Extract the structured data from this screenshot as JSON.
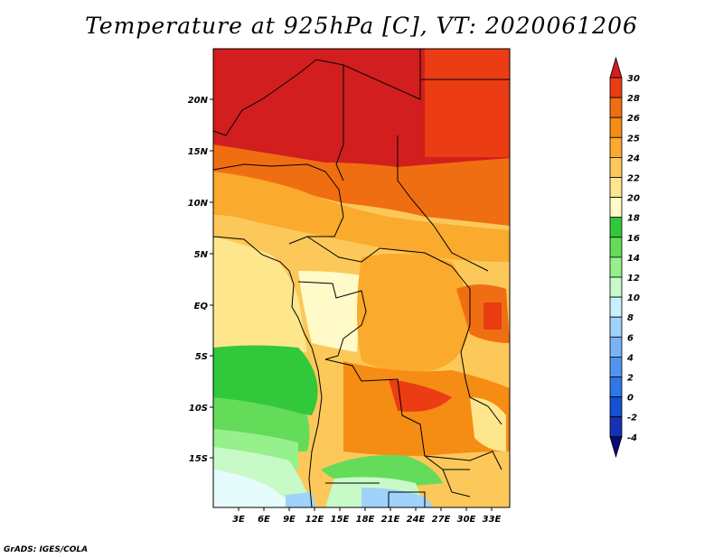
{
  "title": "Temperature at 925hPa [C], VT: 2020061206",
  "credit": "GrADS: IGES/COLA",
  "lat_labels": [
    "20N",
    "15N",
    "10N",
    "5N",
    "EQ",
    "5S",
    "10S",
    "15S"
  ],
  "lon_labels": [
    "3E",
    "6E",
    "9E",
    "12E",
    "15E",
    "18E",
    "21E",
    "24E",
    "27E",
    "30E",
    "33E"
  ],
  "colorbar": {
    "levels": [
      "30",
      "28",
      "26",
      "25",
      "24",
      "22",
      "20",
      "18",
      "16",
      "14",
      "12",
      "10",
      "8",
      "6",
      "4",
      "2",
      "0",
      "-2",
      "-4"
    ],
    "colors": [
      "#d21e1e",
      "#eb3c14",
      "#f06e12",
      "#f58c14",
      "#faaa2d",
      "#fcc85a",
      "#fde68c",
      "#fffac8",
      "#32c83c",
      "#64dc5a",
      "#96f08c",
      "#c8fac8",
      "#c8f0ff",
      "#a0d2fa",
      "#78b4f5",
      "#5096f0",
      "#2d78e6",
      "#1450d2",
      "#1432b4",
      "#0a0a78"
    ]
  }
}
